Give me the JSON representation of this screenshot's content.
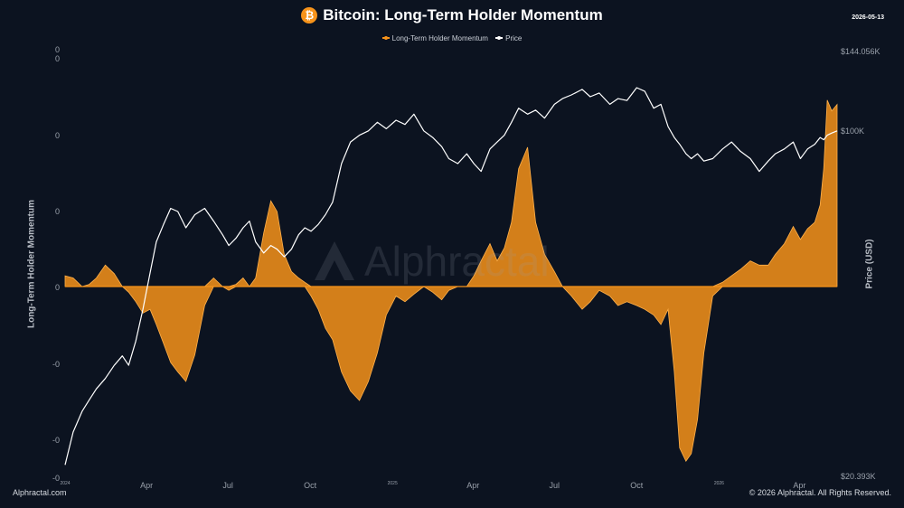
{
  "header": {
    "title": "Bitcoin: Long-Term Holder Momentum",
    "date": "2026-05-13",
    "brand_icon": "bitcoin-icon",
    "brand_color": "#f7931a"
  },
  "footer": {
    "left": "Alphractal.com",
    "right": "© 2026 Alphractal. All Rights Reserved."
  },
  "watermark": "Alphractal",
  "chart_data": {
    "type": "area",
    "legend": [
      {
        "name": "Long-Term Holder Momentum",
        "color": "#f7931a"
      },
      {
        "name": "Price",
        "color": "#ffffff"
      }
    ],
    "legend_position": "top-center",
    "grid": false,
    "left_axis": {
      "label": "Long-Term Holder Momentum",
      "tick_labels": [
        "0",
        "0",
        "0",
        "0",
        "0",
        "-0",
        "-0",
        "-0"
      ]
    },
    "right_axis": {
      "label": "Price (USD)",
      "scale": "log",
      "range": [
        20393,
        144056
      ],
      "tick_labels": [
        "$144.056K",
        "$100K",
        "$20.393K"
      ]
    },
    "x_axis": {
      "range": [
        "2024-01-01",
        "2026-05-13"
      ],
      "ticks": [
        {
          "label": "2024",
          "date": "2024-01-01",
          "small": true
        },
        {
          "label": "Apr",
          "date": "2024-04-01"
        },
        {
          "label": "Jul",
          "date": "2024-07-01"
        },
        {
          "label": "Oct",
          "date": "2024-10-01"
        },
        {
          "label": "2025",
          "date": "2025-01-01",
          "small": true
        },
        {
          "label": "Apr",
          "date": "2025-04-01"
        },
        {
          "label": "Jul",
          "date": "2025-07-01"
        },
        {
          "label": "Oct",
          "date": "2025-10-01"
        },
        {
          "label": "2026",
          "date": "2026-01-01",
          "small": true
        },
        {
          "label": "Apr",
          "date": "2026-04-01"
        }
      ]
    },
    "momentum": {
      "name": "Long-Term Holder Momentum",
      "y_range": [
        -1.0,
        1.0
      ],
      "x": [
        "2024-01-01",
        "2024-01-10",
        "2024-01-20",
        "2024-01-28",
        "2024-02-05",
        "2024-02-15",
        "2024-02-25",
        "2024-03-05",
        "2024-03-12",
        "2024-03-20",
        "2024-03-28",
        "2024-04-05",
        "2024-04-12",
        "2024-04-20",
        "2024-04-28",
        "2024-05-06",
        "2024-05-15",
        "2024-05-25",
        "2024-06-05",
        "2024-06-15",
        "2024-06-25",
        "2024-07-02",
        "2024-07-10",
        "2024-07-18",
        "2024-07-25",
        "2024-08-01",
        "2024-08-10",
        "2024-08-18",
        "2024-08-25",
        "2024-09-02",
        "2024-09-10",
        "2024-09-18",
        "2024-09-25",
        "2024-10-02",
        "2024-10-10",
        "2024-10-18",
        "2024-10-26",
        "2024-11-05",
        "2024-11-15",
        "2024-11-25",
        "2024-12-05",
        "2024-12-15",
        "2024-12-25",
        "2025-01-05",
        "2025-01-15",
        "2025-01-25",
        "2025-02-05",
        "2025-02-15",
        "2025-02-25",
        "2025-03-05",
        "2025-03-15",
        "2025-03-25",
        "2025-04-02",
        "2025-04-10",
        "2025-04-20",
        "2025-04-28",
        "2025-05-06",
        "2025-05-14",
        "2025-05-22",
        "2025-06-01",
        "2025-06-10",
        "2025-06-20",
        "2025-07-01",
        "2025-07-10",
        "2025-07-20",
        "2025-08-01",
        "2025-08-10",
        "2025-08-20",
        "2025-09-01",
        "2025-09-10",
        "2025-09-20",
        "2025-10-01",
        "2025-10-10",
        "2025-10-20",
        "2025-10-28",
        "2025-11-05",
        "2025-11-12",
        "2025-11-18",
        "2025-11-25",
        "2025-12-01",
        "2025-12-08",
        "2025-12-15",
        "2025-12-25",
        "2026-01-05",
        "2026-01-15",
        "2026-01-25",
        "2026-02-05",
        "2026-02-15",
        "2026-02-25",
        "2026-03-05",
        "2026-03-15",
        "2026-03-25",
        "2026-04-02",
        "2026-04-10",
        "2026-04-18",
        "2026-04-24",
        "2026-04-28",
        "2026-05-02",
        "2026-05-07",
        "2026-05-13"
      ],
      "values": [
        0.05,
        0.04,
        0.0,
        0.01,
        0.04,
        0.1,
        0.06,
        0.0,
        -0.03,
        -0.08,
        -0.14,
        -0.12,
        -0.2,
        -0.3,
        -0.4,
        -0.45,
        -0.5,
        -0.36,
        -0.1,
        0.04,
        0.0,
        -0.02,
        0.01,
        0.04,
        0.0,
        0.04,
        0.25,
        0.4,
        0.35,
        0.15,
        0.07,
        0.04,
        0.02,
        -0.05,
        -0.12,
        -0.22,
        -0.28,
        -0.45,
        -0.55,
        -0.6,
        -0.5,
        -0.35,
        -0.15,
        -0.05,
        -0.08,
        -0.04,
        0.0,
        -0.03,
        -0.07,
        -0.02,
        0.0,
        0.0,
        0.05,
        0.12,
        0.2,
        0.12,
        0.18,
        0.3,
        0.55,
        0.65,
        0.3,
        0.15,
        0.07,
        0.0,
        -0.05,
        -0.12,
        -0.08,
        -0.02,
        -0.05,
        -0.1,
        -0.08,
        -0.1,
        -0.12,
        -0.15,
        -0.2,
        -0.12,
        -0.45,
        -0.85,
        -0.92,
        -0.88,
        -0.7,
        -0.35,
        -0.05,
        0.02,
        0.05,
        0.08,
        0.12,
        0.1,
        0.1,
        0.15,
        0.2,
        0.28,
        0.22,
        0.27,
        0.3,
        0.38,
        0.55,
        0.87,
        0.82,
        0.85
      ]
    },
    "price": {
      "name": "Price",
      "x": [
        "2024-01-01",
        "2024-01-10",
        "2024-01-20",
        "2024-01-28",
        "2024-02-05",
        "2024-02-15",
        "2024-02-25",
        "2024-03-05",
        "2024-03-12",
        "2024-03-20",
        "2024-03-28",
        "2024-04-05",
        "2024-04-12",
        "2024-04-20",
        "2024-04-28",
        "2024-05-06",
        "2024-05-15",
        "2024-05-25",
        "2024-06-05",
        "2024-06-15",
        "2024-06-25",
        "2024-07-02",
        "2024-07-10",
        "2024-07-18",
        "2024-07-25",
        "2024-08-01",
        "2024-08-10",
        "2024-08-18",
        "2024-08-25",
        "2024-09-02",
        "2024-09-10",
        "2024-09-18",
        "2024-09-25",
        "2024-10-02",
        "2024-10-10",
        "2024-10-18",
        "2024-10-26",
        "2024-11-05",
        "2024-11-15",
        "2024-11-25",
        "2024-12-05",
        "2024-12-15",
        "2024-12-25",
        "2025-01-05",
        "2025-01-15",
        "2025-01-25",
        "2025-02-05",
        "2025-02-15",
        "2025-02-25",
        "2025-03-05",
        "2025-03-15",
        "2025-03-25",
        "2025-04-02",
        "2025-04-10",
        "2025-04-20",
        "2025-04-28",
        "2025-05-06",
        "2025-05-14",
        "2025-05-22",
        "2025-06-01",
        "2025-06-10",
        "2025-06-20",
        "2025-07-01",
        "2025-07-10",
        "2025-07-20",
        "2025-08-01",
        "2025-08-10",
        "2025-08-20",
        "2025-09-01",
        "2025-09-10",
        "2025-09-20",
        "2025-10-01",
        "2025-10-10",
        "2025-10-20",
        "2025-10-28",
        "2025-11-05",
        "2025-11-12",
        "2025-11-18",
        "2025-11-25",
        "2025-12-01",
        "2025-12-08",
        "2025-12-15",
        "2025-12-25",
        "2026-01-05",
        "2026-01-15",
        "2026-01-25",
        "2026-02-05",
        "2026-02-15",
        "2026-02-25",
        "2026-03-05",
        "2026-03-15",
        "2026-03-25",
        "2026-04-02",
        "2026-04-10",
        "2026-04-18",
        "2026-04-24",
        "2026-04-28",
        "2026-05-02",
        "2026-05-07",
        "2026-05-13"
      ],
      "values": [
        21500,
        25000,
        27500,
        29000,
        30500,
        32000,
        34000,
        35500,
        34000,
        38000,
        44000,
        52000,
        60000,
        65000,
        70000,
        69000,
        64000,
        68000,
        70000,
        66000,
        62000,
        59000,
        61000,
        64000,
        66000,
        60000,
        57000,
        59000,
        58000,
        56000,
        58000,
        62000,
        64000,
        63000,
        65000,
        68000,
        72000,
        86000,
        95000,
        98000,
        100000,
        104000,
        101000,
        105000,
        103000,
        108000,
        100000,
        97000,
        93000,
        88000,
        86000,
        90000,
        86000,
        83000,
        92000,
        95000,
        98000,
        104000,
        111000,
        108000,
        110000,
        106000,
        113000,
        116000,
        118000,
        121000,
        117000,
        119000,
        113000,
        116000,
        115000,
        122000,
        120000,
        111000,
        113000,
        102000,
        97000,
        94000,
        90000,
        88000,
        90000,
        87000,
        88000,
        92000,
        95000,
        91000,
        88000,
        83000,
        87000,
        90000,
        92000,
        95000,
        88000,
        92000,
        94000,
        97000,
        96000,
        98000,
        99000,
        100000
      ]
    }
  }
}
